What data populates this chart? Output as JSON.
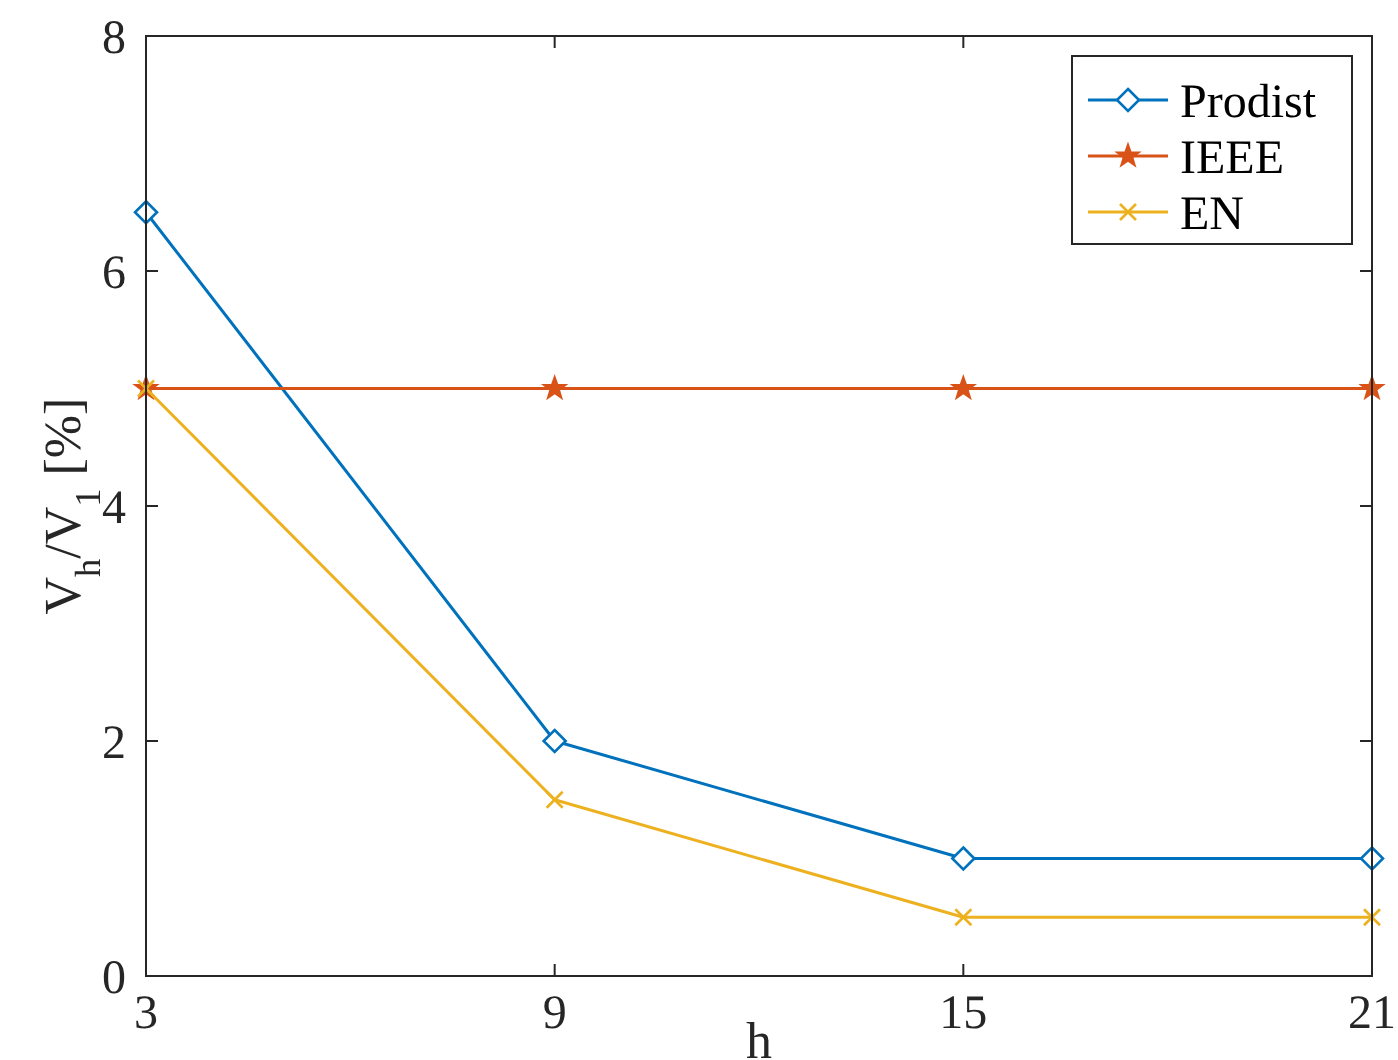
{
  "chart_data": {
    "type": "line",
    "xlabel": "h",
    "ylabel": "V$_{h}$/V$_{1}$ [%]",
    "x": [
      3,
      9,
      15,
      21
    ],
    "xlim": [
      3,
      21
    ],
    "xticks": [
      3,
      9,
      15,
      21
    ],
    "ylim": [
      0,
      8
    ],
    "yticks": [
      0,
      2,
      4,
      6,
      8
    ],
    "grid": false,
    "legend": "top right",
    "line_style": "solid",
    "series": [
      {
        "name": "Prodist",
        "color": "#0072bd",
        "marker": "diamond",
        "values": [
          6.5,
          2,
          1,
          1
        ]
      },
      {
        "name": "IEEE",
        "color": "#d95319",
        "marker": "star",
        "values": [
          5,
          5,
          5,
          5
        ]
      },
      {
        "name": "EN",
        "color": "#edb120",
        "marker": "cross",
        "values": [
          5,
          1.5,
          0.5,
          0.5
        ]
      }
    ]
  }
}
